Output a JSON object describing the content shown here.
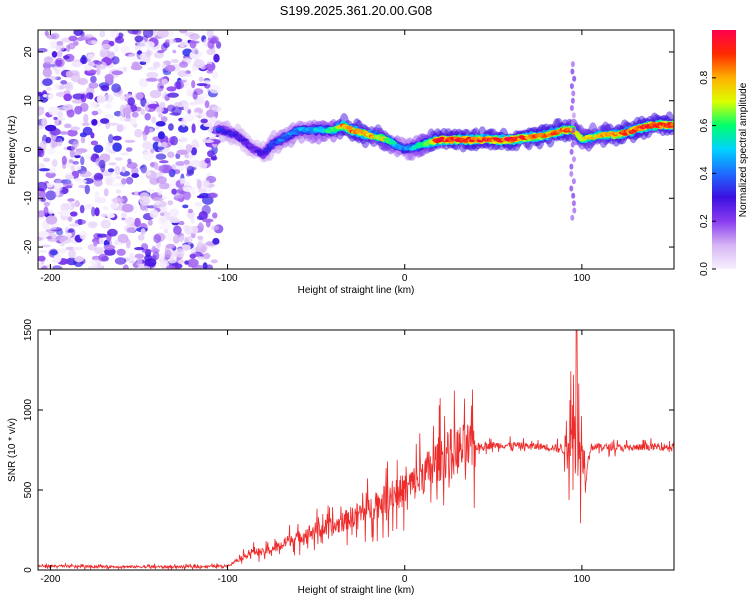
{
  "chart_data": [
    {
      "type": "heatmap",
      "title": "S199.2025.361.20.00.G08",
      "xlabel": "Height of straight line (km)",
      "ylabel": "Frequency (Hz)",
      "xlim": [
        -207,
        152
      ],
      "ylim": [
        -24.5,
        24.5
      ],
      "xticks": [
        -200,
        -100,
        0,
        100
      ],
      "yticks": [
        -20,
        -10,
        0,
        10,
        20
      ],
      "colorbar": {
        "label": "Normalized spectral amplitude",
        "range": [
          0.0,
          1.0
        ],
        "ticks": [
          0.0,
          0.2,
          0.4,
          0.6,
          0.8
        ],
        "tick_labels": [
          "0.0",
          "0.2",
          "0.4",
          "0.6",
          "0.8"
        ],
        "colors": [
          "#f7f1ff",
          "#d6b4f4",
          "#8a3cf0",
          "#3c10e0",
          "#1e6cff",
          "#00d2ff",
          "#00ff6e",
          "#dcff00",
          "#ffb000",
          "#ff2a00",
          "#ff004e"
        ]
      },
      "ridge": {
        "description": "dominant frequency vs height",
        "height_km": [
          -105,
          -95,
          -85,
          -80,
          -75,
          -70,
          -60,
          -50,
          -40,
          -35,
          -30,
          -20,
          -10,
          0,
          10,
          20,
          40,
          60,
          80,
          90,
          95,
          100,
          110,
          120,
          130,
          140,
          150
        ],
        "frequency_hz": [
          4,
          3,
          0,
          -1,
          1,
          2,
          4,
          4,
          4,
          5,
          4,
          3,
          2,
          0,
          1,
          2,
          2,
          2,
          3,
          4,
          4,
          2,
          3,
          3,
          4,
          5,
          5
        ],
        "amplitude": [
          0.35,
          0.3,
          0.25,
          0.3,
          0.35,
          0.4,
          0.45,
          0.5,
          0.6,
          0.85,
          0.9,
          0.8,
          0.7,
          0.4,
          0.6,
          0.95,
          0.9,
          0.95,
          0.85,
          0.9,
          0.8,
          0.7,
          0.75,
          0.85,
          0.9,
          0.95,
          0.9
        ]
      },
      "noise_region_km": [
        -207,
        -105
      ]
    },
    {
      "type": "line",
      "xlabel": "Height of straight line (km)",
      "ylabel": "SNR (10 * v/v)",
      "xlim": [
        -207,
        152
      ],
      "ylim": [
        0,
        1500
      ],
      "xticks": [
        -200,
        -100,
        0,
        100
      ],
      "yticks": [
        0,
        500,
        1000,
        1500
      ],
      "series": [
        {
          "name": "SNR",
          "color": "#ee2a2a",
          "x": [
            -207,
            -180,
            -150,
            -120,
            -100,
            -95,
            -90,
            -85,
            -80,
            -75,
            -70,
            -65,
            -60,
            -55,
            -50,
            -45,
            -40,
            -35,
            -30,
            -25,
            -20,
            -15,
            -10,
            -5,
            0,
            5,
            10,
            15,
            20,
            25,
            30,
            40,
            50,
            60,
            70,
            80,
            88,
            92,
            95,
            98,
            100,
            102,
            105,
            110,
            120,
            130,
            140,
            152
          ],
          "y": [
            25,
            22,
            20,
            20,
            25,
            60,
            90,
            120,
            110,
            130,
            150,
            190,
            200,
            230,
            250,
            260,
            270,
            300,
            330,
            360,
            380,
            410,
            450,
            480,
            500,
            540,
            590,
            640,
            700,
            730,
            750,
            770,
            780,
            780,
            775,
            770,
            760,
            780,
            900,
            700,
            850,
            600,
            770,
            770,
            765,
            765,
            770,
            770
          ]
        }
      ]
    }
  ]
}
